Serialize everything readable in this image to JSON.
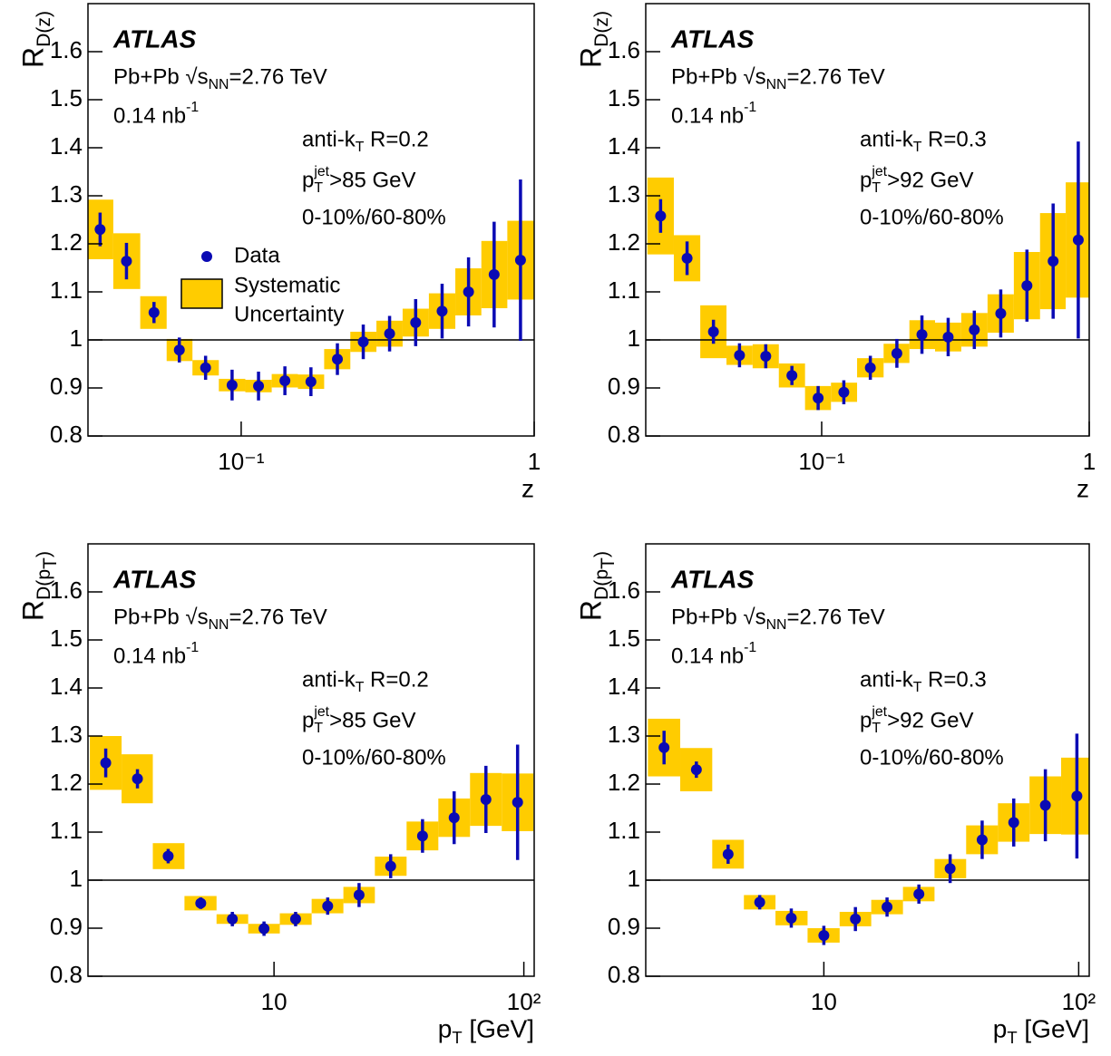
{
  "chart_data": [
    {
      "type": "scatter",
      "xscale": "log",
      "xlim": [
        0.03,
        1
      ],
      "ylim": [
        0.8,
        1.7
      ],
      "xticks": [
        {
          "value": 0.1,
          "label": "10⁻¹"
        },
        1
      ],
      "yticks": [
        0.8,
        0.9,
        1,
        1.1,
        1.2,
        1.3,
        1.4,
        1.5,
        1.6
      ],
      "reference_line": 1,
      "legend": true,
      "ylabel": [
        {
          "text": "R"
        },
        {
          "text": "D(z)",
          "pos": "sub"
        }
      ],
      "xlabel": [
        {
          "text": "z"
        }
      ],
      "annotations": [
        {
          "style": "atlas",
          "segments": [
            {
              "text": "ATLAS"
            }
          ]
        },
        {
          "segments": [
            {
              "text": "Pb+Pb "
            },
            {
              "text": "√"
            },
            {
              "text": "s"
            },
            {
              "text": "NN",
              "pos": "sub"
            },
            {
              "text": "=2.76 TeV"
            }
          ]
        },
        {
          "segments": [
            {
              "text": "0.14 nb"
            },
            {
              "text": "-1",
              "pos": "sup"
            }
          ]
        },
        {
          "segments": [
            {
              "text": "anti-k"
            },
            {
              "text": "T",
              "pos": "sub"
            },
            {
              "text": " R=0.2"
            }
          ]
        },
        {
          "segments": [
            {
              "text": "p"
            },
            {
              "text": "T",
              "pos": "sub"
            },
            {
              "text": "jet",
              "pos": "sup",
              "stack": true
            },
            {
              "text": ">85 GeV"
            }
          ]
        },
        {
          "segments": [
            {
              "text": "0-10%/60-80%"
            }
          ]
        }
      ],
      "x": [
        0.033,
        0.0406,
        0.0504,
        0.0615,
        0.0756,
        0.0931,
        0.1146,
        0.141,
        0.173,
        0.213,
        0.261,
        0.321,
        0.394,
        0.485,
        0.597,
        0.73,
        0.898
      ],
      "series": [
        {
          "name": "Data",
          "color": "#0a0ab4",
          "sys_name": [
            "Systematic",
            "Uncertainty"
          ],
          "sys_color": "#ffcc00",
          "values": [
            1.23,
            1.164,
            1.057,
            0.979,
            0.942,
            0.906,
            0.904,
            0.915,
            0.913,
            0.96,
            0.996,
            1.013,
            1.036,
            1.06,
            1.1,
            1.136,
            1.166
          ],
          "errors": [
            0.035,
            0.038,
            0.022,
            0.026,
            0.025,
            0.032,
            0.03,
            0.03,
            0.03,
            0.033,
            0.036,
            0.037,
            0.049,
            0.057,
            0.072,
            0.11,
            0.168
          ],
          "sys_errors": [
            0.062,
            0.058,
            0.034,
            0.023,
            0.016,
            0.013,
            0.013,
            0.014,
            0.015,
            0.021,
            0.021,
            0.027,
            0.029,
            0.037,
            0.049,
            0.07,
            0.082
          ]
        }
      ]
    },
    {
      "type": "scatter",
      "xscale": "log",
      "xlim": [
        0.022,
        1
      ],
      "ylim": [
        0.8,
        1.7
      ],
      "xticks": [
        {
          "value": 0.1,
          "label": "10⁻¹"
        },
        1
      ],
      "yticks": [
        0.8,
        0.9,
        1,
        1.1,
        1.2,
        1.3,
        1.4,
        1.5,
        1.6
      ],
      "reference_line": 1,
      "legend": false,
      "ylabel": [
        {
          "text": "R"
        },
        {
          "text": "D(z)",
          "pos": "sub"
        }
      ],
      "xlabel": [
        {
          "text": "z"
        }
      ],
      "annotations": [
        {
          "style": "atlas",
          "segments": [
            {
              "text": "ATLAS"
            }
          ]
        },
        {
          "segments": [
            {
              "text": "Pb+Pb "
            },
            {
              "text": "√"
            },
            {
              "text": "s"
            },
            {
              "text": "NN",
              "pos": "sub"
            },
            {
              "text": "=2.76 TeV"
            }
          ]
        },
        {
          "segments": [
            {
              "text": "0.14 nb"
            },
            {
              "text": "-1",
              "pos": "sup"
            }
          ]
        },
        {
          "segments": [
            {
              "text": "anti-k"
            },
            {
              "text": "T",
              "pos": "sub"
            },
            {
              "text": " R=0.3"
            }
          ]
        },
        {
          "segments": [
            {
              "text": "p"
            },
            {
              "text": "T",
              "pos": "sub"
            },
            {
              "text": "jet",
              "pos": "sup",
              "stack": true
            },
            {
              "text": ">92 GeV"
            }
          ]
        },
        {
          "segments": [
            {
              "text": "0-10%/60-80%"
            }
          ]
        }
      ],
      "x": [
        0.025,
        0.0314,
        0.0394,
        0.0493,
        0.0618,
        0.0774,
        0.097,
        0.121,
        0.152,
        0.191,
        0.237,
        0.297,
        0.372,
        0.467,
        0.585,
        0.733,
        0.91
      ],
      "series": [
        {
          "color": "#0a0ab4",
          "sys_color": "#ffcc00",
          "values": [
            1.258,
            1.17,
            1.017,
            0.968,
            0.966,
            0.926,
            0.879,
            0.891,
            0.942,
            0.972,
            1.011,
            1.006,
            1.021,
            1.055,
            1.113,
            1.164,
            1.208
          ],
          "errors": [
            0.035,
            0.035,
            0.025,
            0.025,
            0.025,
            0.02,
            0.025,
            0.025,
            0.025,
            0.03,
            0.04,
            0.04,
            0.04,
            0.05,
            0.075,
            0.12,
            0.205
          ],
          "sys_errors": [
            0.08,
            0.048,
            0.055,
            0.02,
            0.025,
            0.025,
            0.025,
            0.02,
            0.02,
            0.02,
            0.03,
            0.03,
            0.035,
            0.04,
            0.07,
            0.1,
            0.12
          ]
        }
      ]
    },
    {
      "type": "scatter",
      "xscale": "log",
      "xlim": [
        1.8,
        110
      ],
      "ylim": [
        0.8,
        1.7
      ],
      "xticks": [
        10,
        {
          "value": 100,
          "label": "10²"
        }
      ],
      "yticks": [
        0.8,
        0.9,
        1,
        1.1,
        1.2,
        1.3,
        1.4,
        1.5,
        1.6
      ],
      "reference_line": 1,
      "legend": false,
      "ylabel": [
        {
          "text": "R"
        },
        {
          "text": "D(p",
          "pos": "sub"
        },
        {
          "text": "T",
          "pos": "subsub"
        },
        {
          "text": ")",
          "pos": "sub"
        }
      ],
      "xlabel": [
        {
          "text": "p"
        },
        {
          "text": "T",
          "pos": "sub"
        },
        {
          "text": " [GeV]"
        }
      ],
      "annotations": [
        {
          "style": "atlas",
          "segments": [
            {
              "text": "ATLAS"
            }
          ]
        },
        {
          "segments": [
            {
              "text": "Pb+Pb "
            },
            {
              "text": "√"
            },
            {
              "text": "s"
            },
            {
              "text": "NN",
              "pos": "sub"
            },
            {
              "text": "=2.76 TeV"
            }
          ]
        },
        {
          "segments": [
            {
              "text": "0.14 nb"
            },
            {
              "text": "-1",
              "pos": "sup"
            }
          ]
        },
        {
          "segments": [
            {
              "text": "anti-k"
            },
            {
              "text": "T",
              "pos": "sub"
            },
            {
              "text": " R=0.2"
            }
          ]
        },
        {
          "segments": [
            {
              "text": "p"
            },
            {
              "text": "T",
              "pos": "sub"
            },
            {
              "text": "jet",
              "pos": "sup",
              "stack": true
            },
            {
              "text": ">85 GeV"
            }
          ]
        },
        {
          "segments": [
            {
              "text": "0-10%/60-80%"
            }
          ]
        }
      ],
      "x": [
        2.12,
        2.84,
        3.77,
        5.09,
        6.81,
        9.12,
        12.2,
        16.4,
        21.9,
        29.3,
        39.3,
        52.6,
        70.5,
        94.4
      ],
      "series": [
        {
          "color": "#0a0ab4",
          "sys_color": "#ffcc00",
          "values": [
            1.244,
            1.211,
            1.05,
            0.952,
            0.919,
            0.899,
            0.919,
            0.946,
            0.969,
            1.029,
            1.092,
            1.13,
            1.168,
            1.162
          ],
          "errors": [
            0.03,
            0.02,
            0.015,
            0.012,
            0.015,
            0.015,
            0.015,
            0.018,
            0.025,
            0.025,
            0.035,
            0.055,
            0.07,
            0.12
          ],
          "sys_errors": [
            0.056,
            0.051,
            0.027,
            0.015,
            0.01,
            0.01,
            0.012,
            0.015,
            0.017,
            0.02,
            0.03,
            0.04,
            0.055,
            0.06
          ]
        }
      ]
    },
    {
      "type": "scatter",
      "xscale": "log",
      "xlim": [
        2,
        110
      ],
      "ylim": [
        0.8,
        1.7
      ],
      "xticks": [
        10,
        {
          "value": 100,
          "label": "10²"
        }
      ],
      "yticks": [
        0.8,
        0.9,
        1,
        1.1,
        1.2,
        1.3,
        1.4,
        1.5,
        1.6
      ],
      "reference_line": 1,
      "legend": false,
      "ylabel": [
        {
          "text": "R"
        },
        {
          "text": "D(p",
          "pos": "sub"
        },
        {
          "text": "T",
          "pos": "subsub"
        },
        {
          "text": ")",
          "pos": "sub"
        }
      ],
      "xlabel": [
        {
          "text": "p"
        },
        {
          "text": "T",
          "pos": "sub"
        },
        {
          "text": " [GeV]"
        }
      ],
      "annotations": [
        {
          "style": "atlas",
          "segments": [
            {
              "text": "ATLAS"
            }
          ]
        },
        {
          "segments": [
            {
              "text": "Pb+Pb "
            },
            {
              "text": "√"
            },
            {
              "text": "s"
            },
            {
              "text": "NN",
              "pos": "sub"
            },
            {
              "text": "=2.76 TeV"
            }
          ]
        },
        {
          "segments": [
            {
              "text": "0.14 nb"
            },
            {
              "text": "-1",
              "pos": "sup"
            }
          ]
        },
        {
          "segments": [
            {
              "text": "anti-k"
            },
            {
              "text": "T",
              "pos": "sub"
            },
            {
              "text": " R=0.3"
            }
          ]
        },
        {
          "segments": [
            {
              "text": "p"
            },
            {
              "text": "T",
              "pos": "sub"
            },
            {
              "text": "jet",
              "pos": "sup",
              "stack": true
            },
            {
              "text": ">92 GeV"
            }
          ]
        },
        {
          "segments": [
            {
              "text": "0-10%/60-80%"
            }
          ]
        }
      ],
      "x": [
        2.36,
        3.16,
        4.21,
        5.6,
        7.45,
        10,
        13.3,
        17.7,
        23.6,
        31.3,
        41.8,
        55.6,
        74,
        98.4
      ],
      "series": [
        {
          "color": "#0a0ab4",
          "sys_color": "#ffcc00",
          "values": [
            1.276,
            1.23,
            1.054,
            0.954,
            0.921,
            0.885,
            0.919,
            0.944,
            0.971,
            1.024,
            1.084,
            1.12,
            1.156,
            1.175
          ],
          "errors": [
            0.035,
            0.017,
            0.02,
            0.015,
            0.02,
            0.02,
            0.025,
            0.02,
            0.02,
            0.03,
            0.04,
            0.05,
            0.075,
            0.13
          ],
          "sys_errors": [
            0.06,
            0.045,
            0.03,
            0.015,
            0.015,
            0.015,
            0.015,
            0.015,
            0.015,
            0.02,
            0.03,
            0.04,
            0.06,
            0.08
          ]
        }
      ]
    }
  ]
}
